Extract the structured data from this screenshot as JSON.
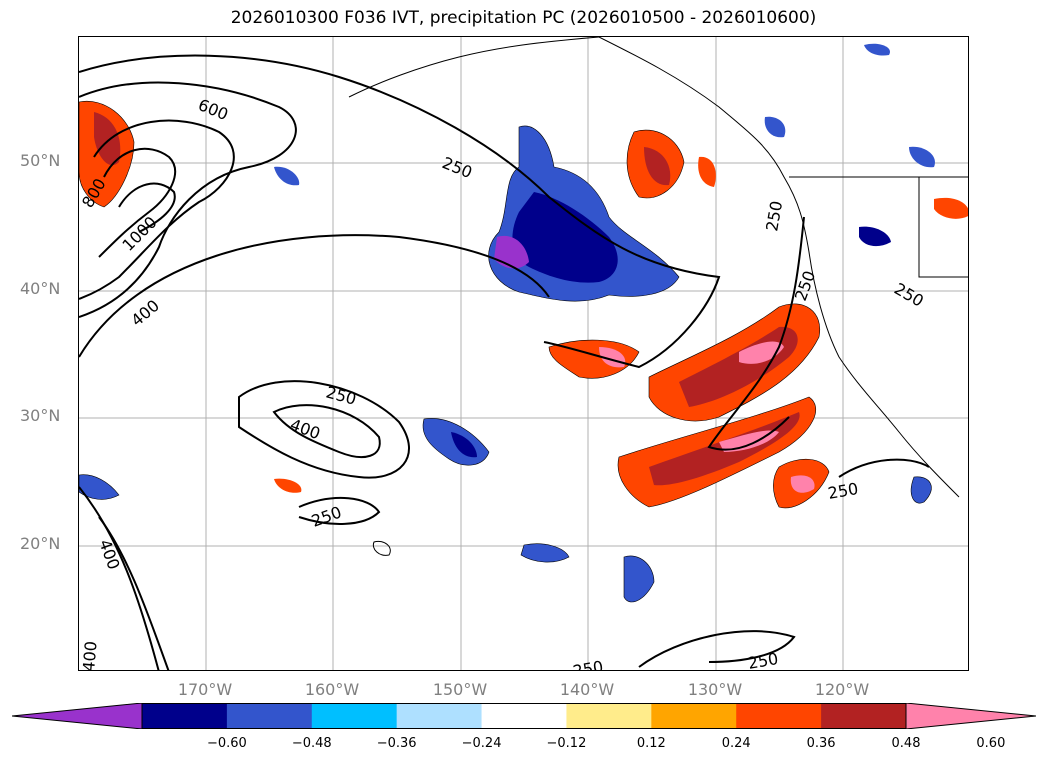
{
  "title": "2026010300 F036 IVT, precipitation PC (2026010500 - 2026010600)",
  "lat_labels": [
    "50°N",
    "40°N",
    "30°N",
    "20°N"
  ],
  "lon_labels": [
    "170°W",
    "160°W",
    "150°W",
    "140°W",
    "130°W",
    "120°W"
  ],
  "contour_labels": {
    "c600": "600",
    "c800": "800",
    "c1000": "1000",
    "c400a": "400",
    "c250a": "250",
    "c250b": "250",
    "c250c": "250",
    "c250d": "250",
    "c250e": "250",
    "c400b": "400",
    "c250f": "250",
    "c400c": "400",
    "c400d": "400",
    "c250g": "250",
    "c250h": "250",
    "c250i": "250"
  },
  "colorbar": {
    "ticks": [
      "−0.60",
      "−0.48",
      "−0.36",
      "−0.24",
      "−0.12",
      "0.12",
      "0.24",
      "0.36",
      "0.48",
      "0.60"
    ],
    "colors": [
      "#9932cc",
      "#00008b",
      "#3355cc",
      "#00bfff",
      "#aee0ff",
      "#ffffff",
      "#ffec8b",
      "#ffa500",
      "#ff4500",
      "#b22222",
      "#ff82ab"
    ]
  }
}
